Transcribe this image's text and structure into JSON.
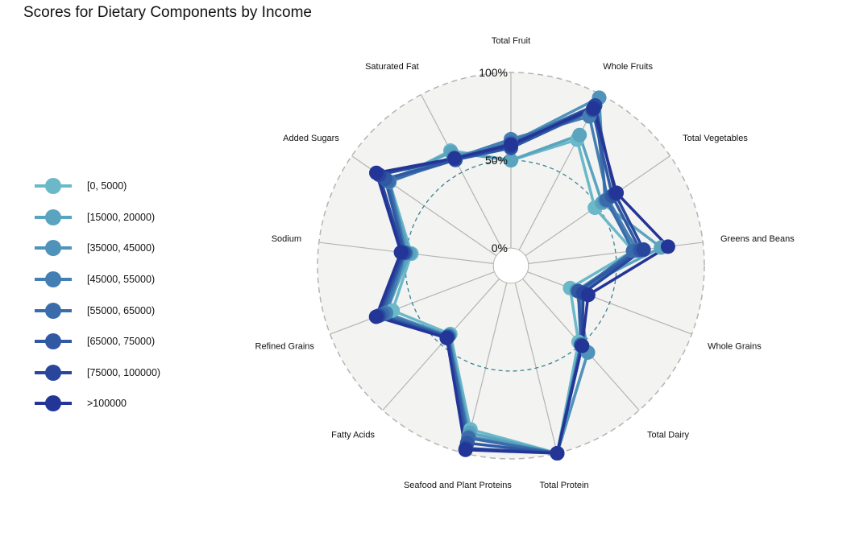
{
  "chart_data": {
    "type": "radar",
    "title": "Scores for Dietary Components by Income",
    "axes": [
      "Total Fruit",
      "Whole Fruits",
      "Total Vegetables",
      "Greens and Beans",
      "Whole Grains",
      "Total Dairy",
      "Total Protein",
      "Seafood and Plant Proteins",
      "Fatty Acids",
      "Refined Grains",
      "Sodium",
      "Added Sugars",
      "Saturated Fat"
    ],
    "ring_labels": [
      "0%",
      "50%",
      "100%"
    ],
    "ylim": [
      -10,
      100
    ],
    "series": [
      {
        "name": "[0, 5000)",
        "color": "#6bb8c9",
        "values": [
          50,
          71,
          48,
          60,
          26,
          48,
          100,
          86,
          42,
          62,
          47,
          74,
          64
        ]
      },
      {
        "name": "[15000, 20000)",
        "color": "#5aa4c0",
        "values": [
          50,
          74,
          53,
          76,
          30,
          56,
          100,
          88,
          43,
          66,
          48,
          75,
          63
        ]
      },
      {
        "name": "[35000, 45000)",
        "color": "#4f93bb",
        "values": [
          60,
          98,
          55,
          63,
          30,
          56,
          100,
          90,
          43,
          67,
          50,
          76,
          60
        ]
      },
      {
        "name": "[45000, 55000)",
        "color": "#447fb3",
        "values": [
          62,
          86,
          57,
          62,
          33,
          51,
          100,
          91,
          44,
          66,
          50,
          74,
          59
        ]
      },
      {
        "name": "[55000, 65000)",
        "color": "#3a6cab",
        "values": [
          60,
          93,
          56,
          60,
          31,
          50,
          100,
          91,
          44,
          68,
          51,
          75,
          58
        ]
      },
      {
        "name": "[65000, 75000)",
        "color": "#3058a3",
        "values": [
          57,
          90,
          60,
          64,
          31,
          51,
          100,
          94,
          44,
          70,
          51,
          77,
          58
        ]
      },
      {
        "name": "[75000, 100000)",
        "color": "#28479c",
        "values": [
          58,
          93,
          62,
          66,
          34,
          51,
          100,
          97,
          45,
          71,
          52,
          81,
          59
        ]
      },
      {
        "name": ">100000",
        "color": "#233596",
        "values": [
          59,
          91,
          63,
          80,
          37,
          51,
          100,
          98,
          45,
          72,
          53,
          83,
          59
        ]
      }
    ]
  }
}
